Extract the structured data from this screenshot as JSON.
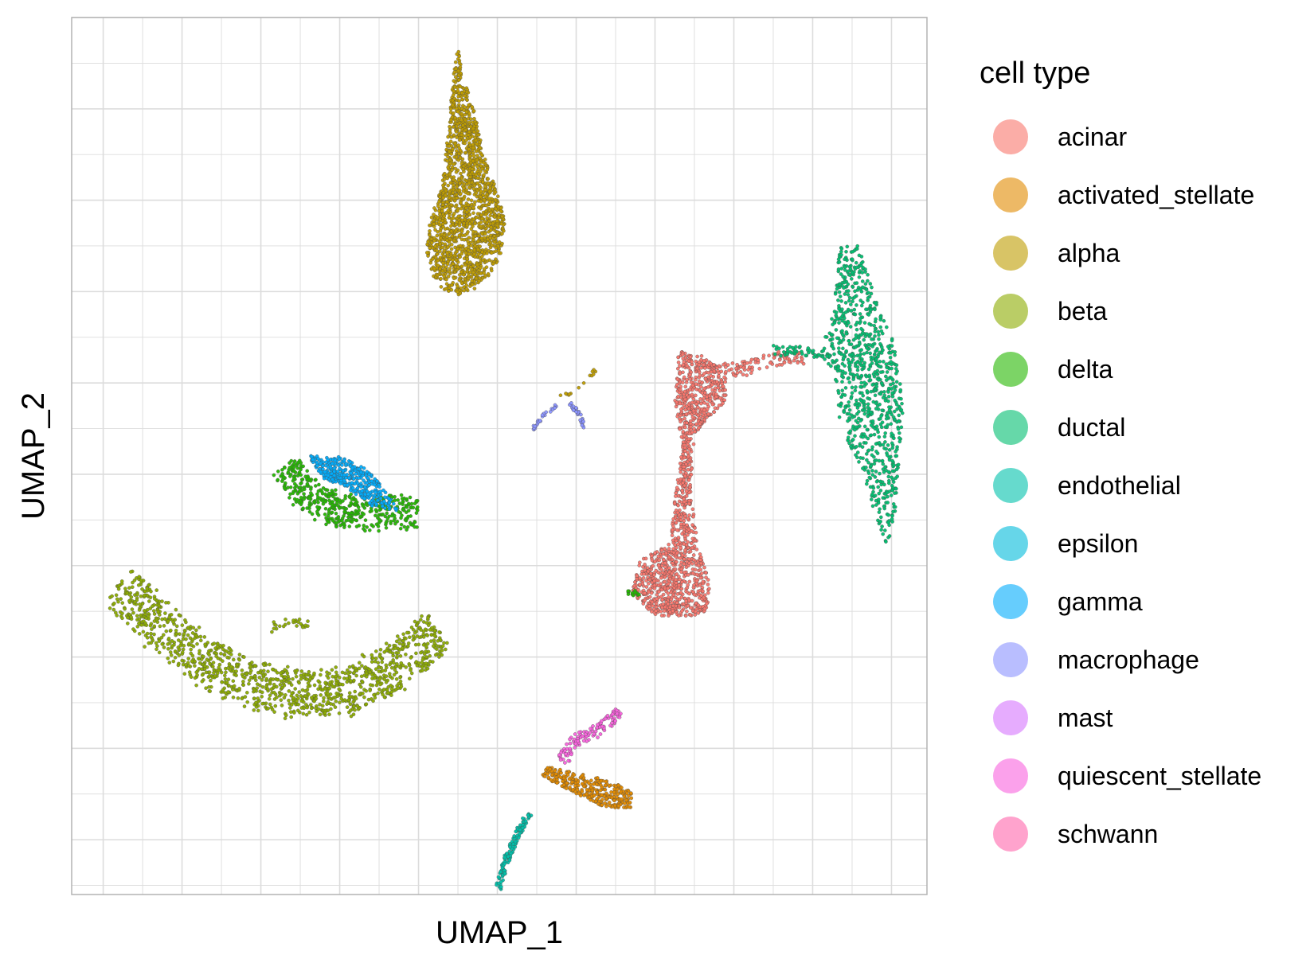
{
  "chart_data": {
    "type": "scatter",
    "title": "",
    "xlabel": "UMAP_1",
    "ylabel": "UMAP_2",
    "xlim": [
      -10.8,
      10.9
    ],
    "ylim": [
      -9.2,
      10.0
    ],
    "grid": true,
    "tick_labels_shown": false,
    "legend": {
      "title": "cell type",
      "placement": "right"
    },
    "series": [
      {
        "name": "acinar",
        "color": "#F8766D",
        "points": []
      },
      {
        "name": "activated_stellate",
        "color": "#E18A00",
        "points": []
      },
      {
        "name": "alpha",
        "color": "#BE9C00",
        "points": []
      },
      {
        "name": "beta",
        "color": "#8CAB00",
        "points": []
      },
      {
        "name": "delta",
        "color": "#24B700",
        "points": []
      },
      {
        "name": "ductal",
        "color": "#00BE70",
        "points": []
      },
      {
        "name": "endothelial",
        "color": "#00C1AB",
        "points": []
      },
      {
        "name": "epsilon",
        "color": "#00BBDA",
        "points": []
      },
      {
        "name": "gamma",
        "color": "#00ACFC",
        "points": []
      },
      {
        "name": "macrophage",
        "color": "#8B93FF",
        "points": []
      },
      {
        "name": "mast",
        "color": "#D575FE",
        "points": []
      },
      {
        "name": "quiescent_stellate",
        "color": "#F962DD",
        "points": []
      },
      {
        "name": "schwann",
        "color": "#FF65AC",
        "points": []
      }
    ],
    "clusters": [
      {
        "series": "alpha",
        "shape": "blob",
        "path": [
          [
            -1.0,
            9.4
          ],
          [
            -0.9,
            8.8
          ],
          [
            -0.6,
            8.0
          ],
          [
            -0.4,
            7.2
          ],
          [
            -0.1,
            6.4
          ],
          [
            0.2,
            5.6
          ],
          [
            0.1,
            4.8
          ],
          [
            -0.4,
            4.1
          ],
          [
            -1.1,
            3.9
          ],
          [
            -1.6,
            4.2
          ],
          [
            -1.8,
            4.9
          ],
          [
            -1.7,
            5.6
          ],
          [
            -1.4,
            6.3
          ],
          [
            -1.3,
            7.1
          ],
          [
            -1.2,
            8.0
          ],
          [
            -1.1,
            8.8
          ]
        ],
        "n": 1600
      },
      {
        "series": "beta",
        "shape": "arc",
        "path": [
          [
            -9.6,
            -2.4
          ],
          [
            -8.5,
            -3.4
          ],
          [
            -7.0,
            -4.3
          ],
          [
            -5.5,
            -4.8
          ],
          [
            -4.0,
            -4.8
          ],
          [
            -2.5,
            -4.2
          ],
          [
            -1.5,
            -3.4
          ]
        ],
        "width": 0.55,
        "n": 1200
      },
      {
        "series": "beta",
        "shape": "arc",
        "path": [
          [
            -5.8,
            -3.4
          ],
          [
            -5.3,
            -3.2
          ],
          [
            -4.8,
            -3.3
          ]
        ],
        "width": 0.12,
        "n": 25
      },
      {
        "series": "delta",
        "shape": "arc",
        "path": [
          [
            -5.4,
            0.2
          ],
          [
            -5.0,
            -0.3
          ],
          [
            -4.4,
            -0.7
          ],
          [
            -3.6,
            -0.9
          ],
          [
            -2.8,
            -0.8
          ],
          [
            -2.0,
            -0.9
          ]
        ],
        "width": 0.38,
        "n": 450
      },
      {
        "series": "gamma",
        "shape": "blob",
        "path": [
          [
            -4.8,
            0.4
          ],
          [
            -4.0,
            0.4
          ],
          [
            -3.3,
            0.1
          ],
          [
            -2.8,
            -0.4
          ],
          [
            -2.5,
            -0.8
          ],
          [
            -3.2,
            -0.7
          ],
          [
            -3.8,
            -0.3
          ],
          [
            -4.4,
            -0.1
          ]
        ],
        "n": 360
      },
      {
        "series": "acinar",
        "shape": "blob",
        "path": [
          [
            4.6,
            2.7
          ],
          [
            5.2,
            2.6
          ],
          [
            5.8,
            2.2
          ],
          [
            5.8,
            1.6
          ],
          [
            5.3,
            1.2
          ],
          [
            5.0,
            0.8
          ],
          [
            4.9,
            -0.3
          ],
          [
            5.1,
            -1.6
          ],
          [
            5.4,
            -2.4
          ],
          [
            5.3,
            -3.1
          ],
          [
            4.0,
            -3.1
          ],
          [
            3.4,
            -2.6
          ],
          [
            3.6,
            -1.9
          ],
          [
            4.4,
            -1.5
          ],
          [
            4.5,
            -0.5
          ],
          [
            4.7,
            0.6
          ],
          [
            4.5,
            1.6
          ]
        ],
        "n": 1300
      },
      {
        "series": "acinar",
        "shape": "arc",
        "path": [
          [
            5.4,
            2.3
          ],
          [
            6.2,
            2.3
          ],
          [
            7.0,
            2.5
          ],
          [
            7.8,
            2.6
          ]
        ],
        "width": 0.18,
        "n": 110
      },
      {
        "series": "ductal",
        "shape": "blob",
        "path": [
          [
            8.7,
            5.0
          ],
          [
            9.2,
            5.0
          ],
          [
            9.6,
            3.8
          ],
          [
            10.1,
            2.8
          ],
          [
            10.3,
            1.6
          ],
          [
            10.2,
            0.2
          ],
          [
            10.1,
            -0.8
          ],
          [
            9.9,
            -1.6
          ],
          [
            9.6,
            -0.9
          ],
          [
            9.2,
            0.2
          ],
          [
            8.7,
            1.0
          ],
          [
            8.6,
            2.0
          ],
          [
            8.2,
            2.6
          ],
          [
            8.5,
            3.6
          ]
        ],
        "n": 900
      },
      {
        "series": "ductal",
        "shape": "arc",
        "path": [
          [
            7.0,
            2.7
          ],
          [
            7.7,
            2.7
          ],
          [
            8.3,
            2.6
          ]
        ],
        "width": 0.12,
        "n": 45
      },
      {
        "series": "activated_stellate",
        "shape": "blob",
        "path": [
          [
            1.3,
            -6.4
          ],
          [
            2.4,
            -6.6
          ],
          [
            3.4,
            -6.9
          ],
          [
            3.4,
            -7.3
          ],
          [
            2.7,
            -7.3
          ],
          [
            1.8,
            -6.9
          ],
          [
            1.1,
            -6.6
          ]
        ],
        "n": 320
      },
      {
        "series": "quiescent_stellate",
        "shape": "arc",
        "path": [
          [
            1.6,
            -6.3
          ],
          [
            2.0,
            -5.8
          ],
          [
            2.6,
            -5.6
          ],
          [
            3.1,
            -5.2
          ]
        ],
        "width": 0.16,
        "n": 120
      },
      {
        "series": "endothelial",
        "shape": "arc",
        "path": [
          [
            0.0,
            -9.1
          ],
          [
            0.2,
            -8.5
          ],
          [
            0.5,
            -7.9
          ],
          [
            0.8,
            -7.4
          ]
        ],
        "width": 0.09,
        "n": 130
      },
      {
        "series": "macrophage",
        "shape": "arc",
        "path": [
          [
            1.8,
            1.6
          ],
          [
            2.1,
            1.3
          ],
          [
            2.2,
            1.0
          ]
        ],
        "width": 0.05,
        "n": 35
      },
      {
        "series": "macrophage",
        "shape": "arc",
        "path": [
          [
            0.9,
            1.0
          ],
          [
            1.2,
            1.3
          ],
          [
            1.5,
            1.5
          ]
        ],
        "width": 0.05,
        "n": 25
      },
      {
        "series": "alpha",
        "shape": "arc",
        "path": [
          [
            1.6,
            1.7
          ],
          [
            2.1,
            1.9
          ],
          [
            2.5,
            2.3
          ]
        ],
        "width": 0.06,
        "n": 14
      },
      {
        "series": "delta",
        "shape": "arc",
        "path": [
          [
            3.3,
            -2.6
          ],
          [
            3.6,
            -2.6
          ]
        ],
        "width": 0.06,
        "n": 14
      }
    ]
  }
}
